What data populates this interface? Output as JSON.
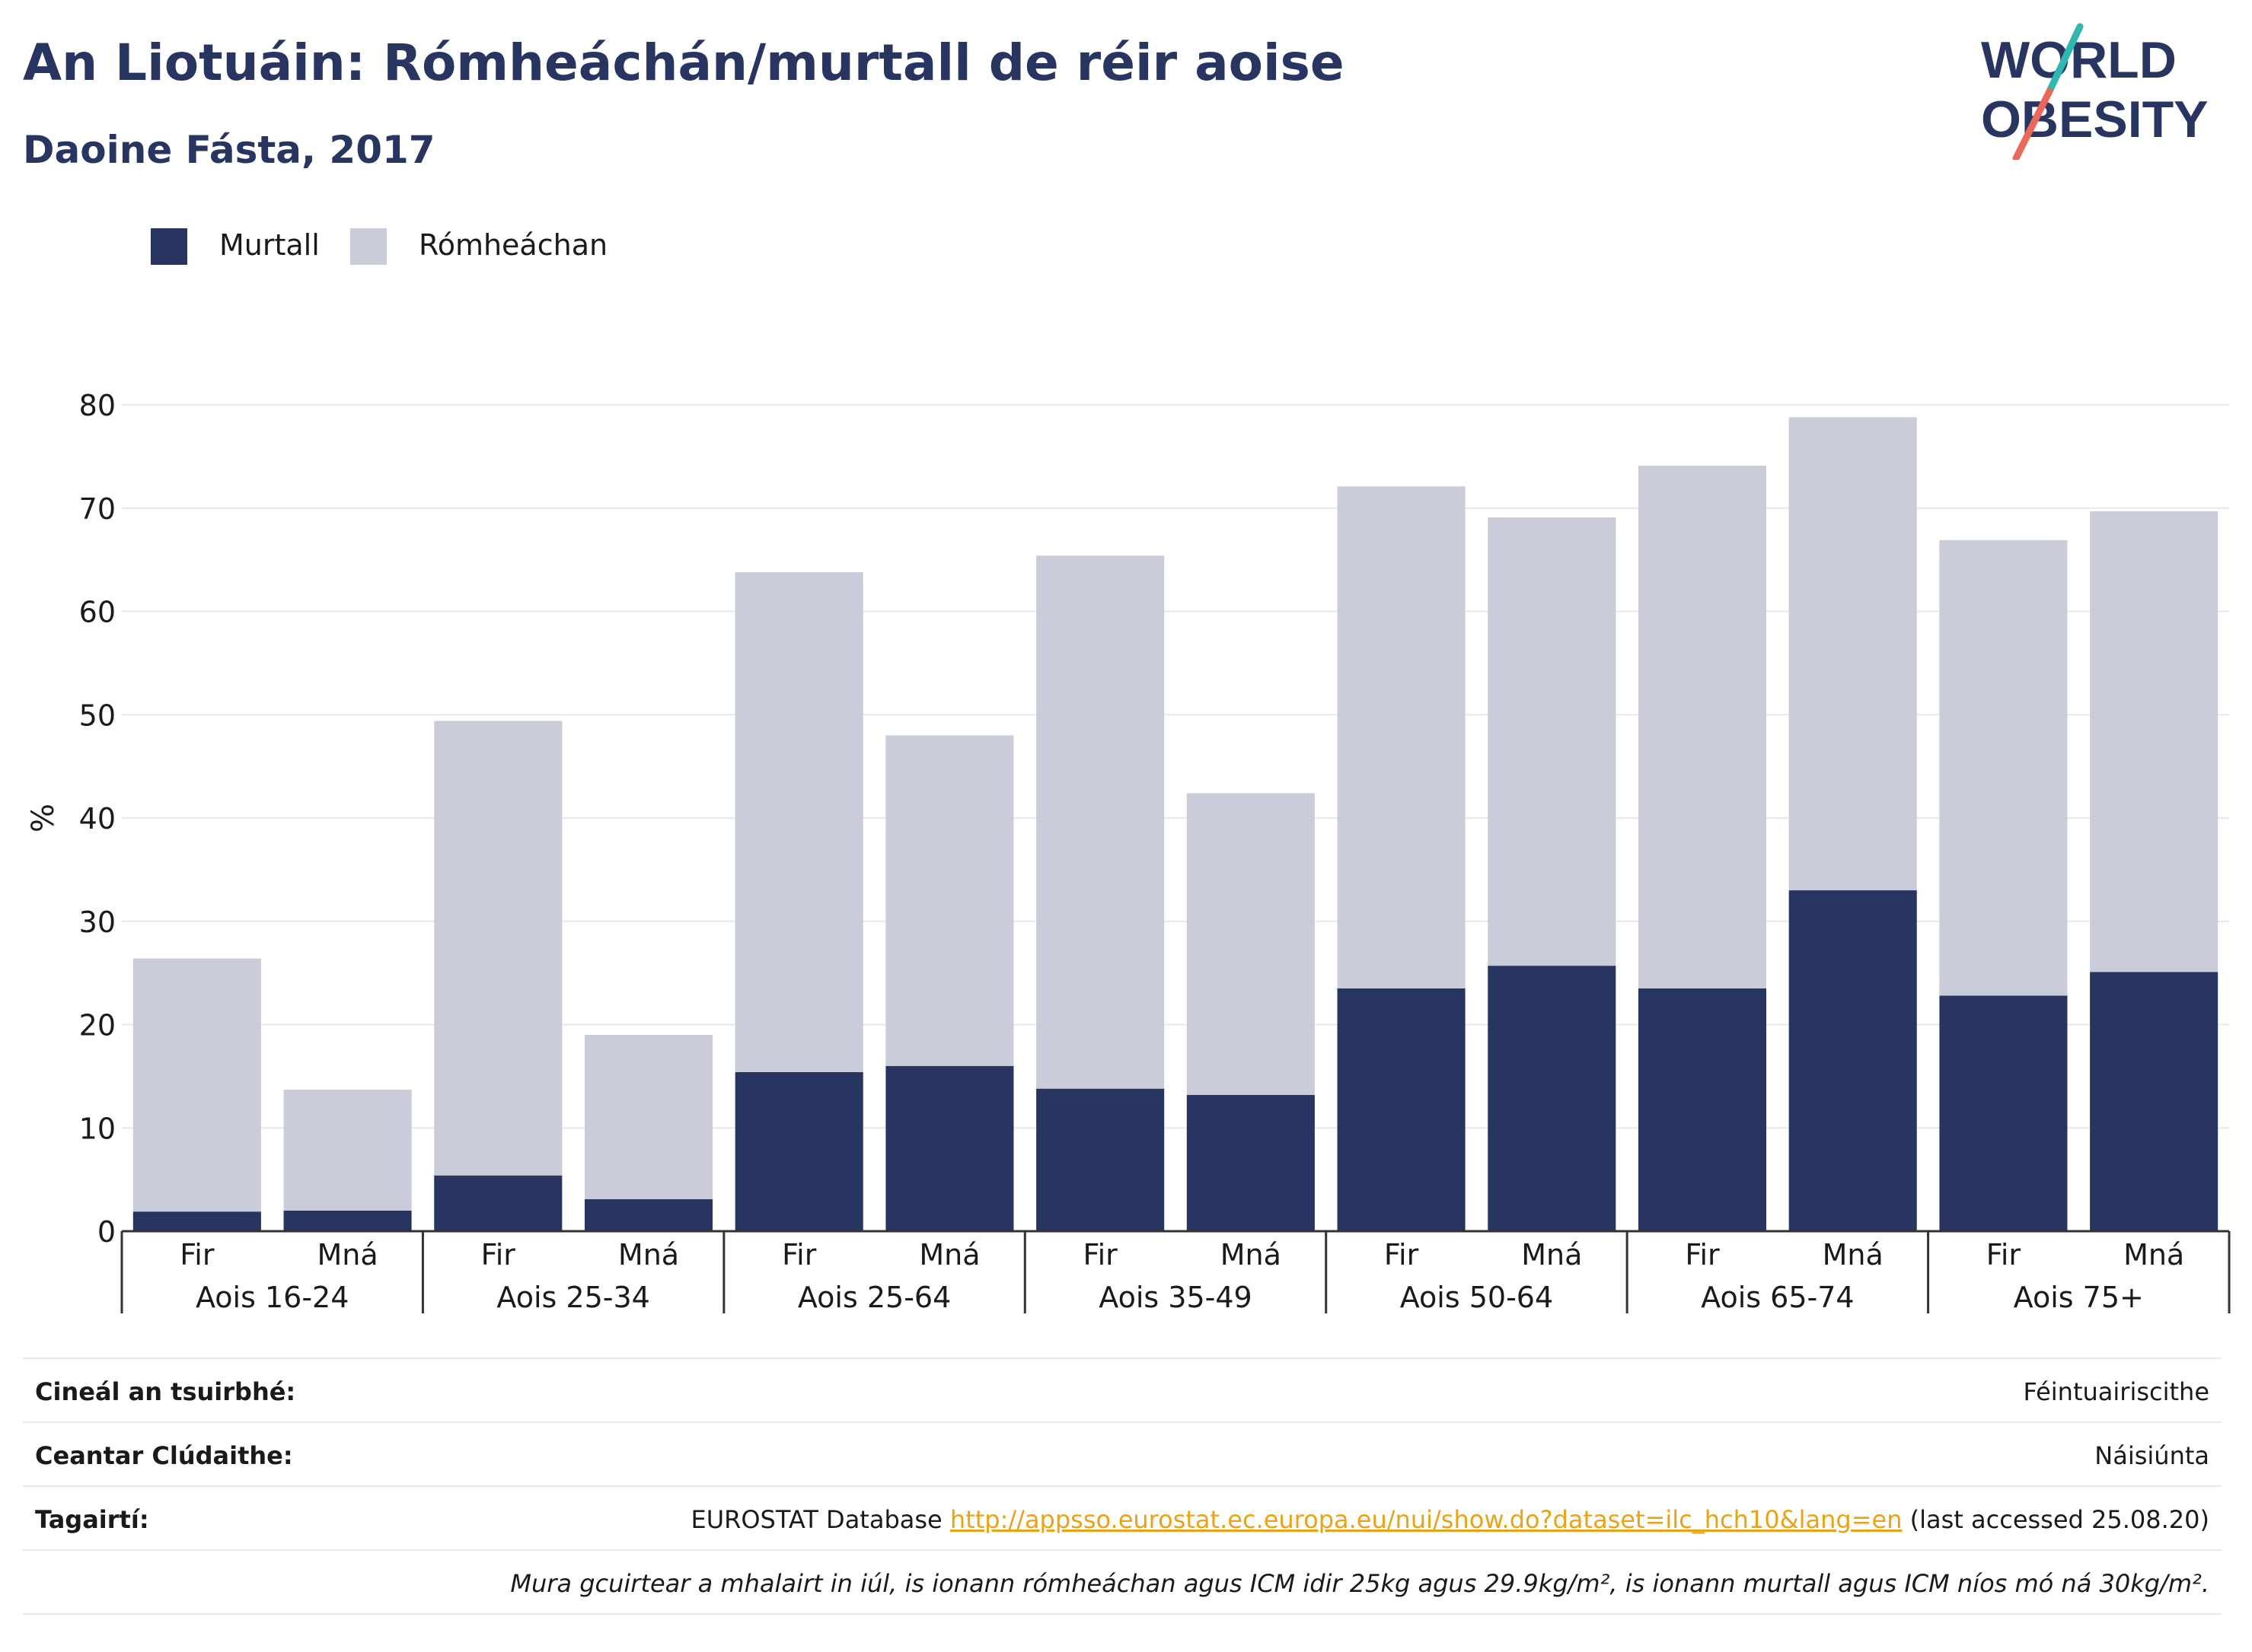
{
  "header": {
    "title": "An Liotuáin: Rómheáchán/murtall de réir aoise",
    "subtitle": "Daoine Fásta, 2017"
  },
  "logo": {
    "line1": "WORLD",
    "line2": "OBESITY"
  },
  "legend": [
    {
      "label": "Murtall",
      "color": "#283561"
    },
    {
      "label": "Rómheáchan",
      "color": "#cacdd9"
    }
  ],
  "chart_data": {
    "type": "bar",
    "stacked": true,
    "ylabel": "%",
    "ylim": [
      0,
      80
    ],
    "yticks": [
      0,
      10,
      20,
      30,
      40,
      50,
      60,
      70,
      80
    ],
    "grid": true,
    "legend_position": "top-left",
    "groups": [
      "Aois 16-24",
      "Aois 25-34",
      "Aois 25-64",
      "Aois 35-49",
      "Aois 50-64",
      "Aois 65-74",
      "Aois 75+"
    ],
    "sub_categories": [
      "Fir",
      "Mná"
    ],
    "series": [
      {
        "name": "Murtall",
        "color": "#283561",
        "values": [
          1.9,
          2.0,
          5.4,
          3.1,
          15.4,
          16.0,
          13.8,
          13.2,
          23.5,
          25.7,
          23.5,
          33.0,
          22.8,
          25.1
        ]
      },
      {
        "name": "Rómheáchan",
        "color": "#cacdd9",
        "values": [
          24.5,
          11.7,
          44.0,
          15.9,
          48.4,
          32.0,
          51.6,
          29.2,
          48.6,
          43.4,
          50.6,
          45.8,
          44.1,
          44.6
        ]
      }
    ]
  },
  "info": {
    "rows": [
      {
        "label": "Cineál an tsuirbhé:",
        "value": "Féintuairiscithe"
      },
      {
        "label": "Ceantar Clúdaithe:",
        "value": "Náisiúnta"
      }
    ],
    "references": {
      "label": "Tagairtí:",
      "prefix": "EUROSTAT Database ",
      "link": "http://appsso.eurostat.ec.europa.eu/nui/show.do?dataset=ilc_hch10&lang=en",
      "suffix": " (last accessed 25.08.20)"
    },
    "note": "Mura gcuirtear a mhalairt in iúl, is ionann rómheáchan agus ICM idir 25kg agus 29.9kg/m², is ionann murtall agus ICM níos mó ná 30kg/m²."
  }
}
